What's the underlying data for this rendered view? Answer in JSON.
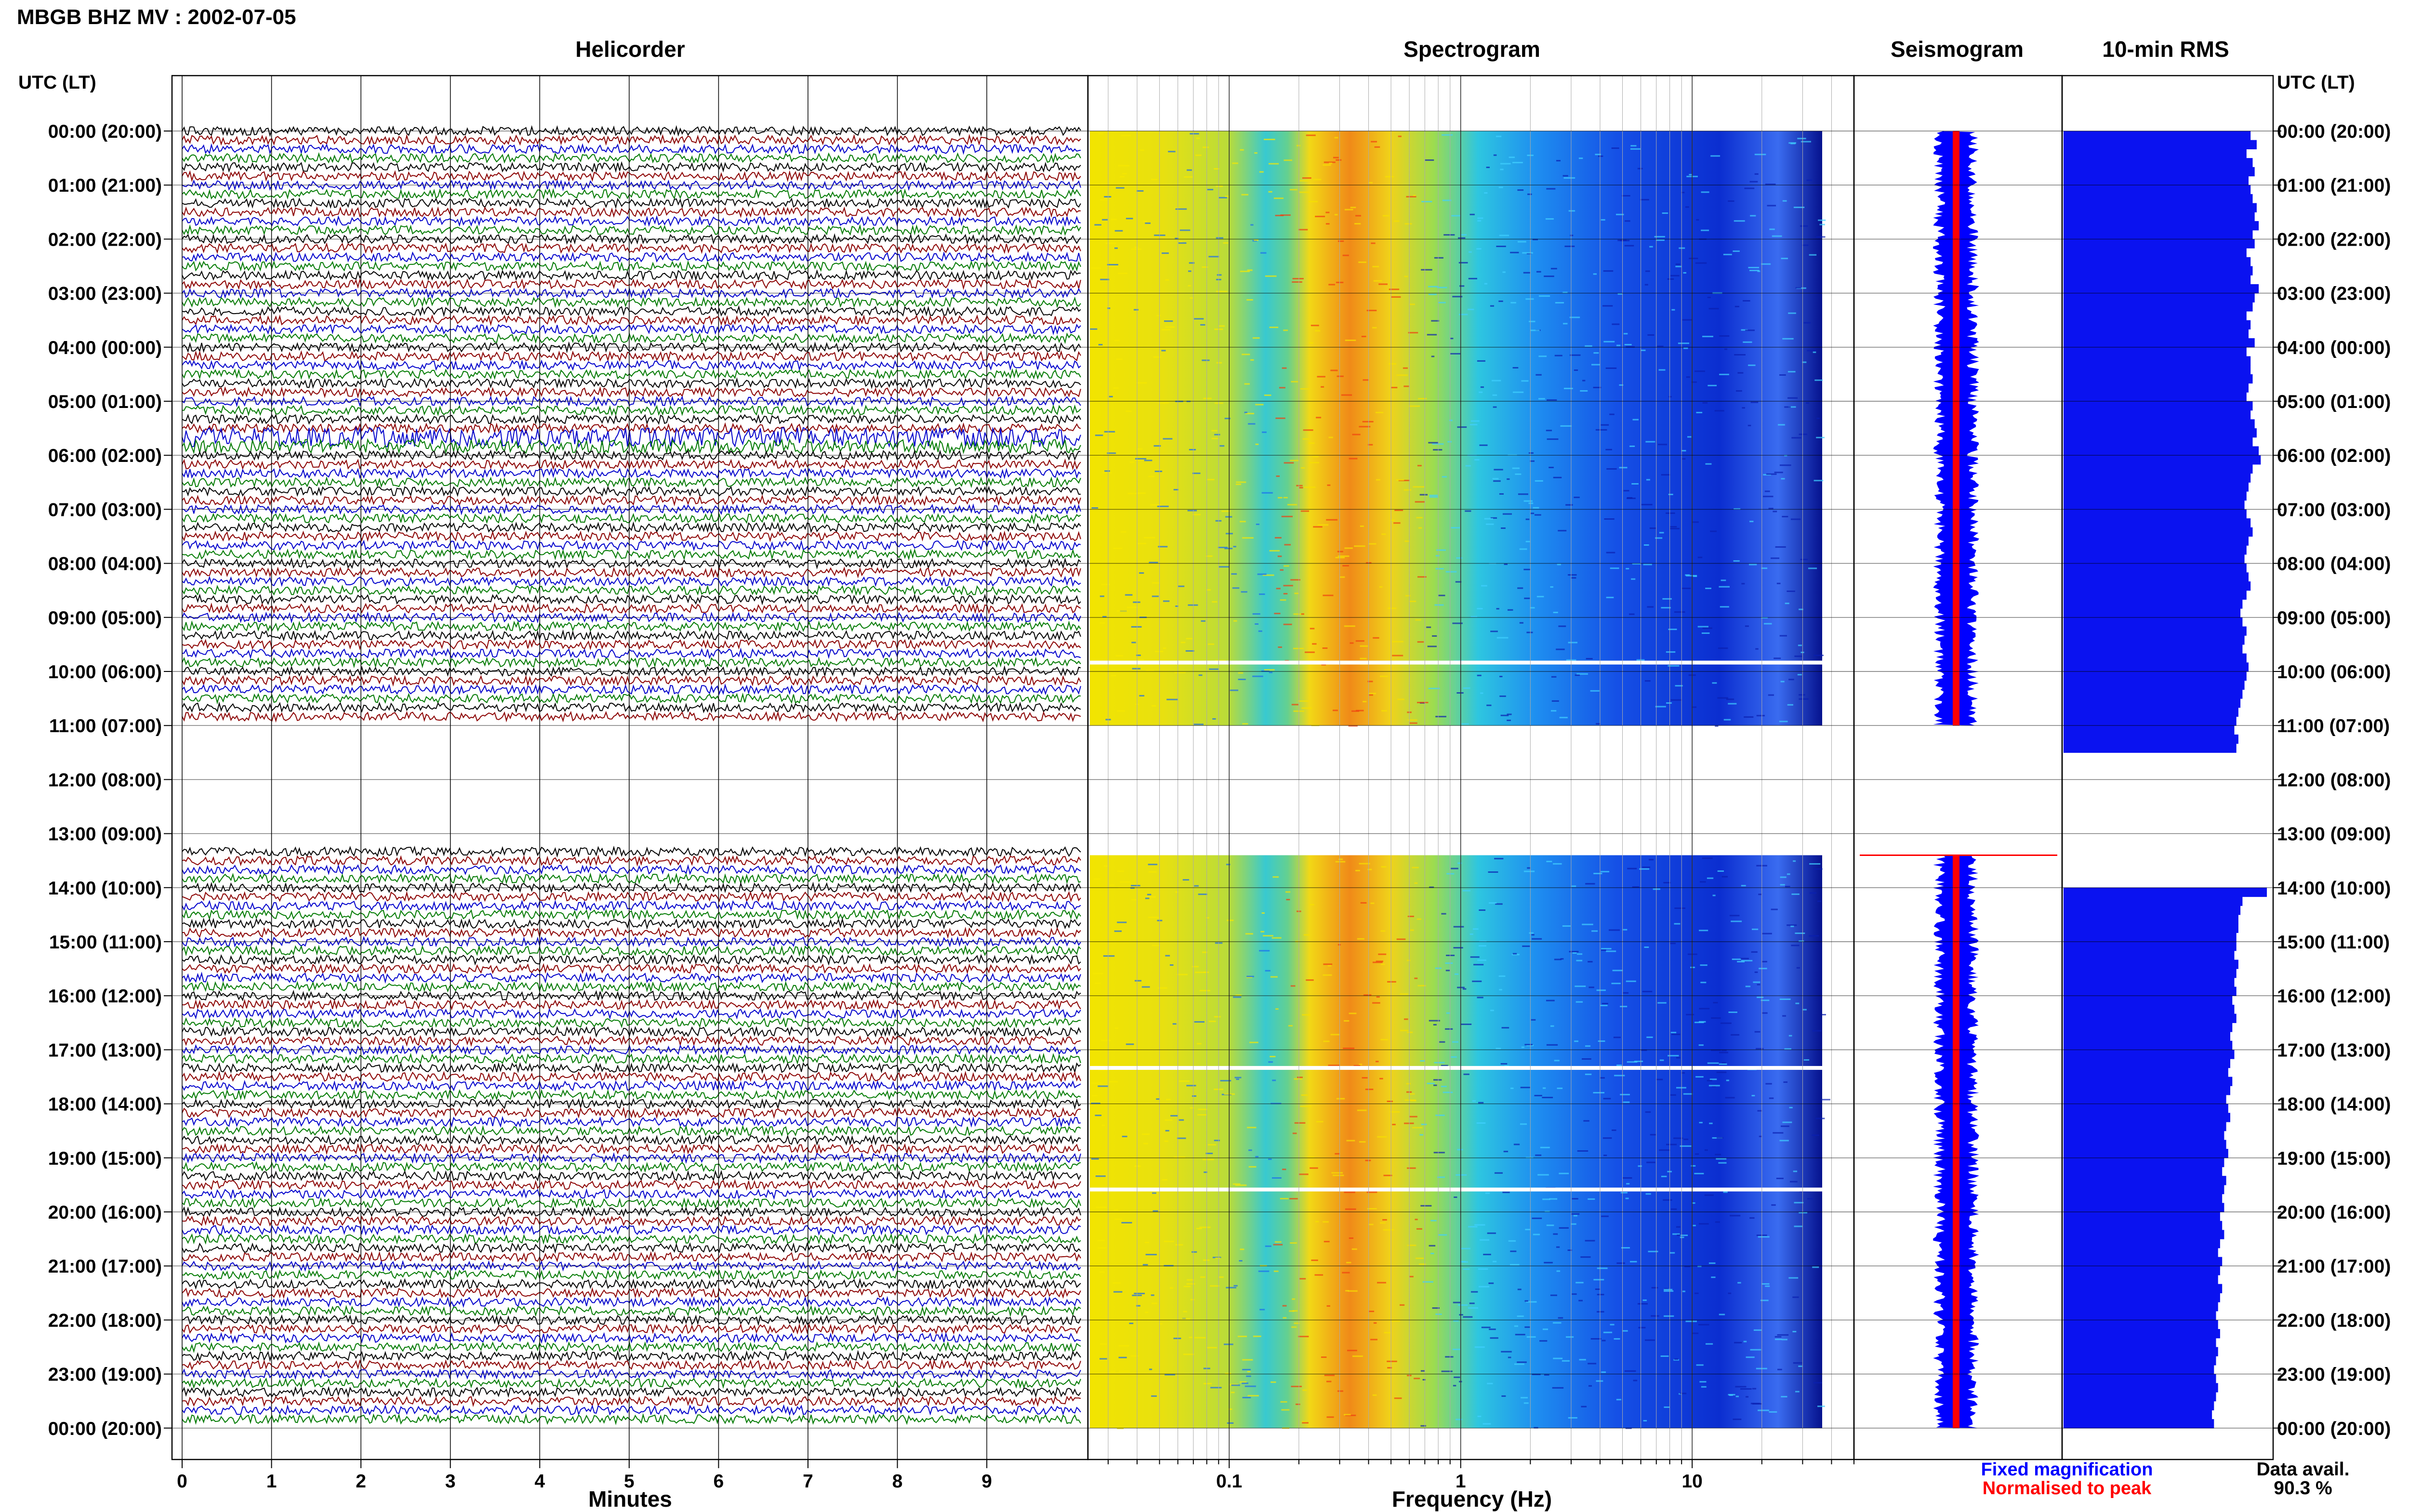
{
  "chart_data": {
    "type": "helicorder-composite",
    "title": "MBGB BHZ MV : 2002-07-05",
    "time_axis": {
      "label": "UTC (LT)",
      "ticks": [
        "00:00 (20:00)",
        "01:00 (21:00)",
        "02:00 (22:00)",
        "03:00 (23:00)",
        "04:00 (00:00)",
        "05:00 (01:00)",
        "06:00 (02:00)",
        "07:00 (03:00)",
        "08:00 (04:00)",
        "09:00 (05:00)",
        "10:00 (06:00)",
        "11:00 (07:00)",
        "12:00 (08:00)",
        "13:00 (09:00)",
        "14:00 (10:00)",
        "15:00 (11:00)",
        "16:00 (12:00)",
        "17:00 (13:00)",
        "18:00 (14:00)",
        "19:00 (15:00)",
        "20:00 (16:00)",
        "21:00 (17:00)",
        "22:00 (18:00)",
        "23:00 (19:00)",
        "00:00 (20:00)"
      ],
      "data_gaps_hours": [
        [
          11.0,
          13.33
        ]
      ]
    },
    "panels": {
      "helicorder": {
        "title": "Helicorder",
        "xlabel": "Minutes",
        "x_ticks": [
          "0",
          "1",
          "2",
          "3",
          "4",
          "5",
          "6",
          "7",
          "8",
          "9"
        ],
        "xlim": [
          0,
          10
        ],
        "trace_colors": [
          "#000000",
          "#8b0000",
          "#0000cc",
          "#007a00"
        ]
      },
      "spectrogram": {
        "title": "Spectrogram",
        "xlabel": "Frequency (Hz)",
        "x_ticks": [
          "0.1",
          "1",
          "10"
        ],
        "xscale": "log",
        "xlim": [
          0.025,
          50
        ],
        "peak_frequency_hz": 0.4
      },
      "seismogram": {
        "title": "Seismogram"
      },
      "rms": {
        "title": "10-min RMS",
        "values": [
          0.92,
          0.95,
          0.9,
          0.93,
          0.94,
          0.91,
          0.92,
          0.93,
          0.95,
          0.94,
          0.96,
          0.93,
          0.94,
          0.9,
          0.92,
          0.93,
          0.92,
          0.96,
          0.94,
          0.93,
          0.9,
          0.92,
          0.91,
          0.94,
          0.9,
          0.92,
          0.92,
          0.93,
          0.91,
          0.9,
          0.93,
          0.92,
          0.94,
          0.95,
          0.93,
          0.96,
          0.97,
          0.93,
          0.92,
          0.91,
          0.9,
          0.89,
          0.9,
          0.92,
          0.93,
          0.91,
          0.9,
          0.89,
          0.9,
          0.91,
          0.92,
          0.9,
          0.88,
          0.87,
          0.88,
          0.9,
          0.89,
          0.88,
          0.9,
          0.91,
          0.9,
          0.89,
          0.88,
          0.87,
          0.86,
          0.85,
          0.84,
          0.86,
          0.85,
          null,
          null,
          null,
          null,
          null,
          null,
          null,
          null,
          null,
          null,
          null,
          null,
          null,
          null,
          null,
          1.0,
          0.88,
          0.87,
          0.86,
          0.86,
          0.85,
          0.85,
          0.84,
          0.86,
          0.85,
          0.84,
          0.85,
          0.83,
          0.84,
          0.85,
          0.83,
          0.82,
          0.83,
          0.84,
          0.82,
          0.81,
          0.83,
          0.82,
          0.8,
          0.81,
          0.82,
          0.8,
          0.79,
          0.8,
          0.81,
          0.79,
          0.78,
          0.8,
          0.79,
          0.78,
          0.79,
          0.77,
          0.78,
          0.79,
          0.77,
          0.76,
          0.78,
          0.77,
          0.76,
          0.78,
          0.77,
          0.76,
          0.75,
          0.76,
          0.77,
          0.75,
          0.76,
          0.75,
          0.74,
          0.75,
          0.76,
          0.75,
          0.74,
          0.73,
          0.74
        ]
      }
    },
    "legend": {
      "fixed": "Fixed magnification",
      "normalised": "Normalised to peak",
      "fixed_color": "#0000ff",
      "normalised_color": "#ff0000"
    },
    "data_availability": {
      "label": "Data avail.",
      "value": "90.3 %"
    }
  }
}
